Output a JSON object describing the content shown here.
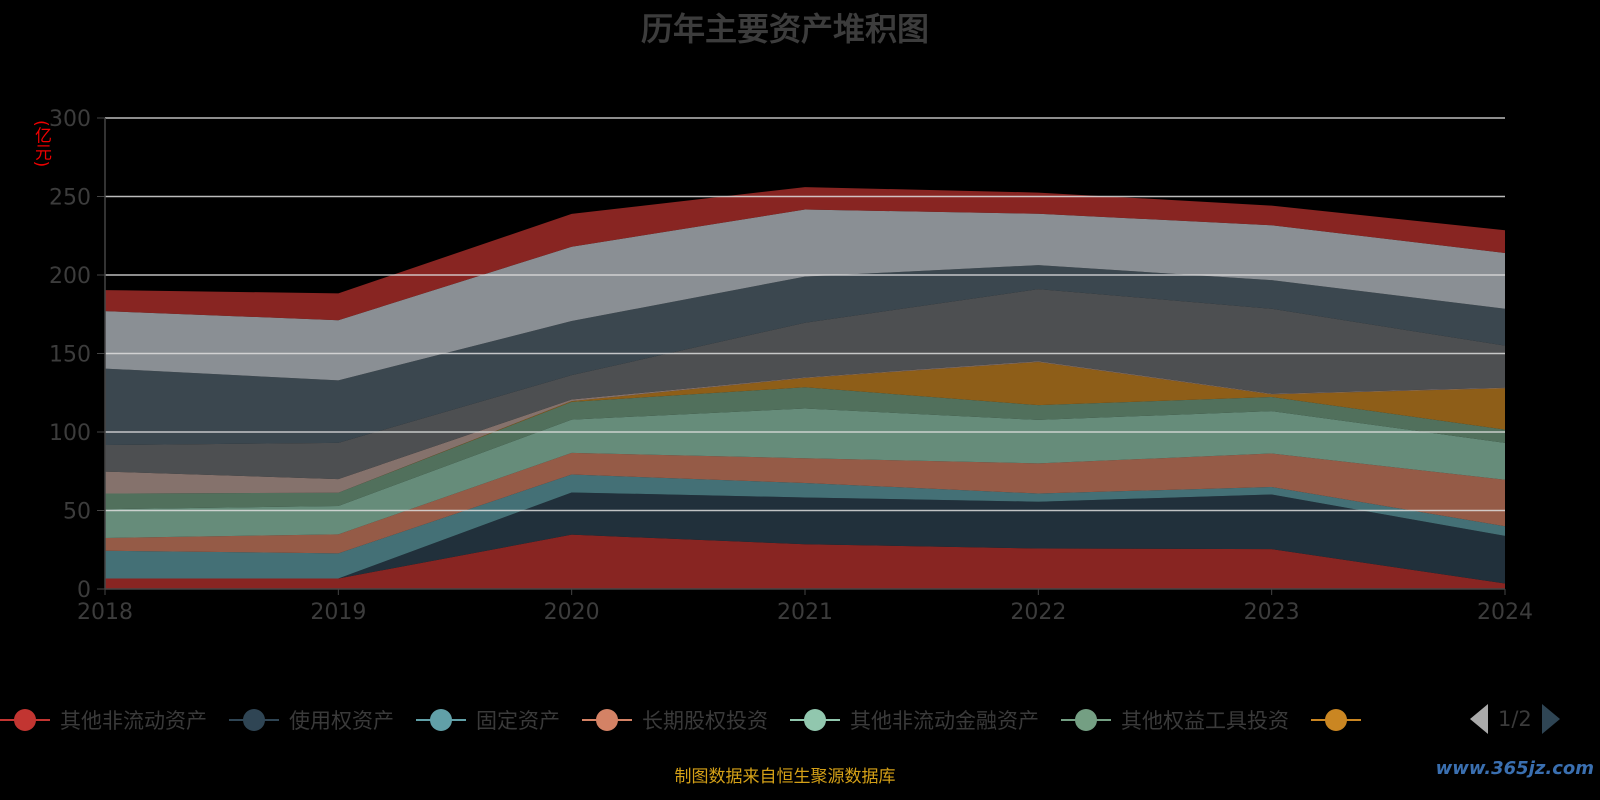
{
  "chart_data": {
    "type": "area",
    "stacked": true,
    "title": "历年主要资产堆积图",
    "ylabel": "(亿元)",
    "xlabel": "",
    "categories": [
      "2018",
      "2019",
      "2020",
      "2021",
      "2022",
      "2023",
      "2024"
    ],
    "ylim": [
      0,
      300
    ],
    "yticks": [
      0,
      50,
      100,
      150,
      200,
      250,
      300
    ],
    "grid": true,
    "legend_position": "bottom",
    "series": [
      {
        "name": "其他非流动资产",
        "color": "#c23531",
        "values": [
          6.7,
          6.7,
          34.6,
          28.5,
          25.8,
          25.4,
          3.5
        ]
      },
      {
        "name": "使用权资产",
        "color": "#2f4554",
        "values": [
          0,
          0,
          26.9,
          29.8,
          29.8,
          34.8,
          30.3
        ]
      },
      {
        "name": "固定资产",
        "color": "#61a0a8",
        "values": [
          17.7,
          16.0,
          11.4,
          9.2,
          5.2,
          4.8,
          6.2
        ]
      },
      {
        "name": "长期股权投资",
        "color": "#d48265",
        "values": [
          8.1,
          12.1,
          13.8,
          15.8,
          19.2,
          21.3,
          29.6
        ]
      },
      {
        "name": "其他非流动金融资产",
        "color": "#91c7ae",
        "values": [
          18.3,
          18.1,
          21.2,
          31.7,
          27.7,
          27.0,
          23.5
        ]
      },
      {
        "name": "其他权益工具投资",
        "color": "#749f83",
        "values": [
          10.0,
          8.4,
          11.3,
          13.5,
          9.4,
          9.0,
          8.4
        ]
      },
      {
        "color": "#ca8622",
        "values": [
          0,
          0,
          0.5,
          5.9,
          27.5,
          1.7,
          26.4
        ]
      },
      {
        "color": "#bda29a",
        "values": [
          14.0,
          8.7,
          1.0,
          0.4,
          0.5,
          0.4,
          0.4
        ]
      },
      {
        "color": "#6e7074",
        "values": [
          16.9,
          23.1,
          15.5,
          34.8,
          45.9,
          54.1,
          26.7
        ]
      },
      {
        "color": "#546570",
        "values": [
          48.7,
          39.8,
          34.5,
          29.4,
          15.3,
          18.2,
          23.5
        ]
      },
      {
        "color": "#c4ccd3",
        "values": [
          36.6,
          38.3,
          47.3,
          42.7,
          32.7,
          35.0,
          35.5
        ]
      },
      {
        "color": "#c23531",
        "values": [
          13.4,
          17.1,
          20.9,
          14.3,
          13.5,
          12.5,
          14.5
        ]
      }
    ]
  },
  "legend": {
    "page": "1/2",
    "visible_count": 7
  },
  "source": "制图数据来自恒生聚源数据库",
  "watermark": "www.365jz.com"
}
